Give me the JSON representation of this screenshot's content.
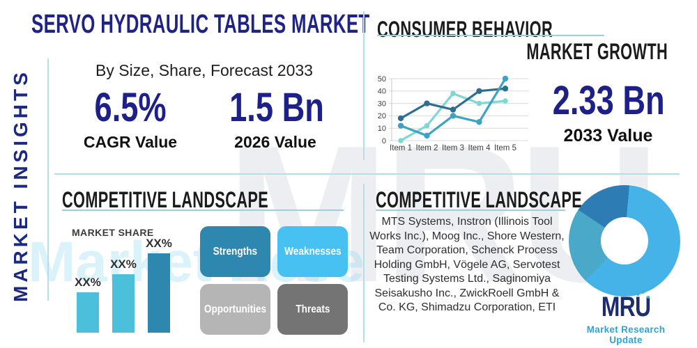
{
  "page": {
    "title": "SERVO HYDRAULIC TABLES MARKET",
    "subtitle": "By Size, Share, Forecast 2033",
    "vertical_label": "MARKET INSIGHTS"
  },
  "stats": {
    "cagr": {
      "value": "6.5%",
      "label": "CAGR Value"
    },
    "base": {
      "value": "1.5 Bn",
      "label": "2026 Value"
    },
    "forecast": {
      "value": "2.33 Bn",
      "label": "2033 Value"
    }
  },
  "sections": {
    "behavior_heading": "CONSUMER BEHAVIOR",
    "growth_heading": "MARKET GROWTH",
    "landscape_left_heading": "COMPETITIVE LANDSCAPE",
    "landscape_right_heading": "COMPETITIVE LANDSCAPE",
    "market_share_label": "MARKET SHARE",
    "companies": "MTS Systems, Instron (Illinois Tool Works Inc.), Moog Inc., Shore Western, Team Corporation, Schenck Process Holding GmbH, Vögele AG, Servotest Testing Systems Ltd., Saginomiya Seisakusho Inc., ZwickRoell GmbH & Co. KG, Shimadzu Corporation, ETI"
  },
  "swot": [
    {
      "label": "Strengths",
      "color": "#2d87ae"
    },
    {
      "label": "Weaknesses",
      "color": "#47c1f1"
    },
    {
      "label": "Opportunities",
      "color": "#b5b5b5"
    },
    {
      "label": "Threats",
      "color": "#747474"
    }
  ],
  "logo": {
    "text": "MRU",
    "tagline": "Market Research Update",
    "navy": "#1b2d6e",
    "teal": "#2aa5d8"
  },
  "watermark": {
    "big": "MRU",
    "band": "Market Research Update"
  },
  "colors": {
    "navy": "#1f2384",
    "heading_dark": "#1b1b1b",
    "underline_teal": "#9bd2d9",
    "divider_blue": "#b9dde8"
  },
  "chart_data": [
    {
      "id": "growth_line",
      "type": "line",
      "title": "",
      "x_labels": [
        "Item 1",
        "Item 2",
        "Item 3",
        "Item 4",
        "Item 5"
      ],
      "yticks": [
        0,
        10,
        20,
        30,
        40,
        50
      ],
      "ylim": [
        0,
        50
      ],
      "grid": true,
      "legend": "none",
      "series": [
        {
          "name": "dark-blue",
          "color": "#2e6e91",
          "values": [
            18,
            30,
            25,
            40,
            42
          ]
        },
        {
          "name": "medium-teal",
          "color": "#3da3c2",
          "values": [
            12,
            4,
            20,
            15,
            50
          ]
        },
        {
          "name": "light-teal",
          "color": "#7fd7d2",
          "values": [
            0,
            12,
            38,
            30,
            32
          ]
        }
      ]
    },
    {
      "id": "market_share_bar",
      "type": "bar",
      "title": "MARKET SHARE",
      "categories": [
        "",
        "",
        ""
      ],
      "value_labels": [
        "XX%",
        "XX%",
        "XX%"
      ],
      "values": [
        25,
        36,
        49
      ],
      "ylim": [
        0,
        60
      ],
      "bar_colors": [
        "#4cc0da",
        "#4cc0da",
        "#2d87ae"
      ]
    },
    {
      "id": "share_donut",
      "type": "pie",
      "donut": true,
      "start_angle_deg": 5,
      "slices": [
        {
          "name": "segment-light-blue",
          "value": 61,
          "color": "#45b3e8"
        },
        {
          "name": "segment-teal",
          "value": 22,
          "color": "#4aa9c8"
        },
        {
          "name": "segment-dark-blue",
          "value": 17,
          "color": "#2e7cb4"
        }
      ]
    }
  ]
}
